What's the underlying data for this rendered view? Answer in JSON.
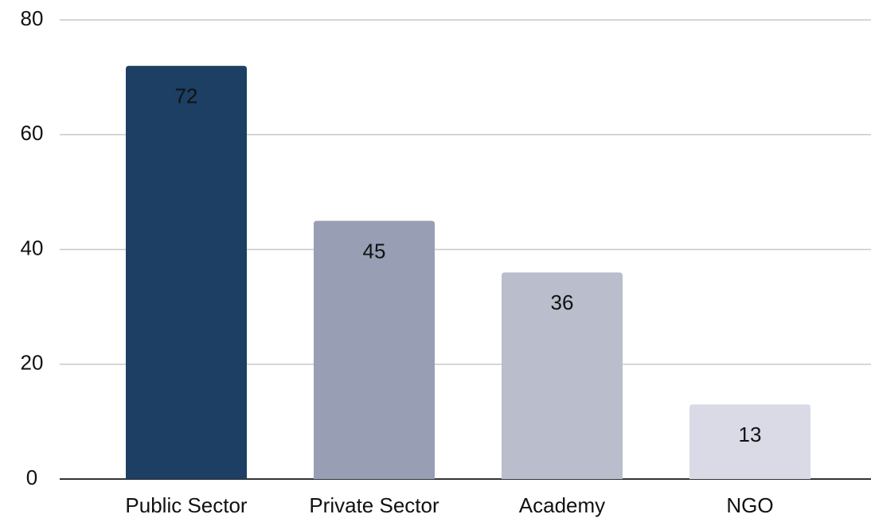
{
  "chart_data": {
    "type": "bar",
    "categories": [
      "Public Sector",
      "Private Sector",
      "Academy",
      "NGO"
    ],
    "values": [
      72,
      45,
      36,
      13
    ],
    "colors": [
      "#1c3f63",
      "#989eb4",
      "#babdcc",
      "#d9dae6"
    ],
    "value_label_colors": [
      "#ffffff",
      "#111111",
      "#111111",
      "#111111"
    ],
    "ylim": [
      0,
      80
    ],
    "yticks": [
      0,
      20,
      40,
      60,
      80
    ],
    "grid": true
  }
}
